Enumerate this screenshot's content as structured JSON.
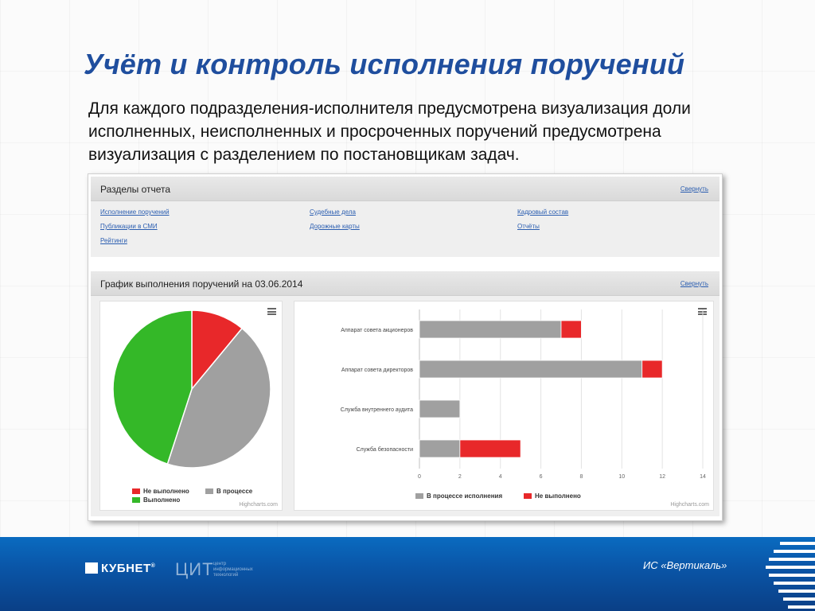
{
  "slide": {
    "title": "Учёт и контроль исполнения поручений",
    "body": "Для каждого подразделения-исполнителя предусмотрена визуализация доли исполненных, неисполненных и просроченных поручений предусмотрена визуализация с разделением по постановщикам задач."
  },
  "report_sections": {
    "title": "Разделы отчета",
    "collapse_label": "Свернуть",
    "links": [
      "Исполнение поручений",
      "Публикации в СМИ",
      "Рейтинги",
      "Судебные дела",
      "Дорожные карты",
      "Кадровый состав",
      "Отчёты"
    ]
  },
  "chart_section": {
    "title": "График выполнения поручений на 03.06.2014",
    "collapse_label": "Свернуть",
    "credits": "Highcharts.com"
  },
  "colors": {
    "gray": "#a0a0a0",
    "red": "#e8282a",
    "green": "#34b828",
    "title_blue": "#1f4e9e"
  },
  "chart_data": [
    {
      "type": "pie",
      "labels": [
        "Не выполнено",
        "В процессе",
        "Выполнено"
      ],
      "values": [
        11,
        44,
        45
      ],
      "colors": [
        "#e8282a",
        "#a0a0a0",
        "#34b828"
      ],
      "legend_position": "bottom",
      "title": ""
    },
    {
      "type": "bar",
      "orientation": "horizontal",
      "stacked": true,
      "categories": [
        "Аппарат совета акционеров",
        "Аппарат совета директоров",
        "Служба внутреннего аудита",
        "Служба безопасности"
      ],
      "series": [
        {
          "name": "В процессе исполнения",
          "values": [
            7,
            11,
            2,
            2
          ],
          "color": "#a0a0a0"
        },
        {
          "name": "Не выполнено",
          "values": [
            1,
            1,
            0,
            3
          ],
          "color": "#e8282a"
        }
      ],
      "xlim": [
        0,
        14
      ],
      "ticks": [
        0,
        2,
        4,
        6,
        8,
        10,
        12,
        14
      ],
      "grid": true,
      "legend_position": "bottom",
      "title": ""
    }
  ],
  "footer": {
    "company": "КУБНЕТ",
    "registered": "®",
    "cit": "ЦИТ",
    "cit_subtitle": "центр информационных технологий",
    "system_name": "ИС «Вертикаль»"
  }
}
